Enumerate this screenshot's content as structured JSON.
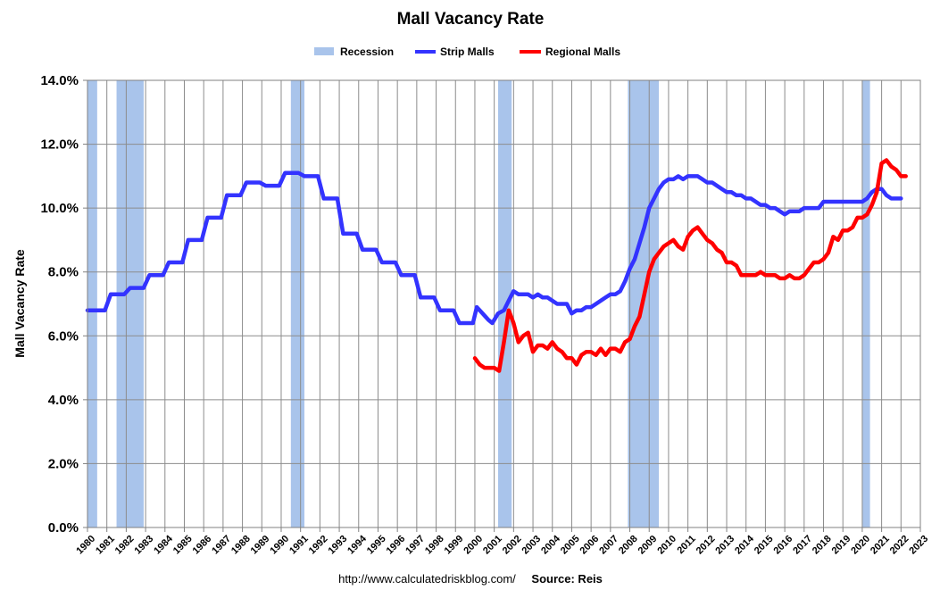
{
  "chart_data": {
    "type": "line",
    "title": "Mall Vacancy Rate",
    "ylabel": "Mall Vacancy Rate",
    "ylim": [
      0,
      14
    ],
    "y_ticks": [
      "0.0%",
      "2.0%",
      "4.0%",
      "6.0%",
      "8.0%",
      "10.0%",
      "12.0%",
      "14.0%"
    ],
    "y_tick_values": [
      0,
      2,
      4,
      6,
      8,
      10,
      12,
      14
    ],
    "xlim": [
      1980,
      2023
    ],
    "x_ticks": [
      "1980",
      "1981",
      "1982",
      "1983",
      "1984",
      "1985",
      "1986",
      "1987",
      "1988",
      "1989",
      "1990",
      "1991",
      "1992",
      "1993",
      "1994",
      "1995",
      "1996",
      "1997",
      "1998",
      "1999",
      "2000",
      "2001",
      "2002",
      "2003",
      "2004",
      "2005",
      "2006",
      "2007",
      "2008",
      "2009",
      "2010",
      "2011",
      "2012",
      "2013",
      "2014",
      "2015",
      "2016",
      "2017",
      "2018",
      "2019",
      "2020",
      "2021",
      "2022",
      "2023"
    ],
    "grid": true,
    "legend_position": "top-center",
    "legend": [
      {
        "name": "Recession",
        "color": "#a9c4eb",
        "kind": "band"
      },
      {
        "name": "Strip Malls",
        "color": "#3333ff",
        "kind": "line"
      },
      {
        "name": "Regional Malls",
        "color": "#ff0000",
        "kind": "line"
      }
    ],
    "recessions": [
      [
        1980.0,
        1980.5
      ],
      [
        1981.5,
        1982.9
      ],
      [
        1990.5,
        1991.2
      ],
      [
        2001.2,
        2001.9
      ],
      [
        2007.9,
        2009.5
      ],
      [
        2020.0,
        2020.4
      ]
    ],
    "series": [
      {
        "name": "Strip Malls",
        "color": "#3333ff",
        "points": [
          [
            1980.0,
            6.8
          ],
          [
            1980.9,
            6.8
          ],
          [
            1981.2,
            7.3
          ],
          [
            1981.9,
            7.3
          ],
          [
            1982.2,
            7.5
          ],
          [
            1982.9,
            7.5
          ],
          [
            1983.2,
            7.9
          ],
          [
            1983.9,
            7.9
          ],
          [
            1984.2,
            8.3
          ],
          [
            1984.9,
            8.3
          ],
          [
            1985.2,
            9.0
          ],
          [
            1985.9,
            9.0
          ],
          [
            1986.2,
            9.7
          ],
          [
            1986.9,
            9.7
          ],
          [
            1987.2,
            10.4
          ],
          [
            1987.9,
            10.4
          ],
          [
            1988.2,
            10.8
          ],
          [
            1988.9,
            10.8
          ],
          [
            1989.2,
            10.7
          ],
          [
            1989.9,
            10.7
          ],
          [
            1990.2,
            11.1
          ],
          [
            1990.9,
            11.1
          ],
          [
            1991.2,
            11.0
          ],
          [
            1991.9,
            11.0
          ],
          [
            1992.2,
            10.3
          ],
          [
            1992.9,
            10.3
          ],
          [
            1993.2,
            9.2
          ],
          [
            1993.9,
            9.2
          ],
          [
            1994.2,
            8.7
          ],
          [
            1994.9,
            8.7
          ],
          [
            1995.2,
            8.3
          ],
          [
            1995.9,
            8.3
          ],
          [
            1996.2,
            7.9
          ],
          [
            1996.9,
            7.9
          ],
          [
            1997.2,
            7.2
          ],
          [
            1997.9,
            7.2
          ],
          [
            1998.2,
            6.8
          ],
          [
            1998.9,
            6.8
          ],
          [
            1999.2,
            6.4
          ],
          [
            1999.9,
            6.4
          ],
          [
            2000.1,
            6.9
          ],
          [
            2000.4,
            6.7
          ],
          [
            2000.7,
            6.5
          ],
          [
            2000.9,
            6.4
          ],
          [
            2001.2,
            6.7
          ],
          [
            2001.5,
            6.8
          ],
          [
            2001.75,
            7.1
          ],
          [
            2002.0,
            7.4
          ],
          [
            2002.25,
            7.3
          ],
          [
            2002.5,
            7.3
          ],
          [
            2002.75,
            7.3
          ],
          [
            2003.0,
            7.2
          ],
          [
            2003.25,
            7.3
          ],
          [
            2003.5,
            7.2
          ],
          [
            2003.75,
            7.2
          ],
          [
            2004.0,
            7.1
          ],
          [
            2004.25,
            7.0
          ],
          [
            2004.5,
            7.0
          ],
          [
            2004.75,
            7.0
          ],
          [
            2005.0,
            6.7
          ],
          [
            2005.25,
            6.8
          ],
          [
            2005.5,
            6.8
          ],
          [
            2005.75,
            6.9
          ],
          [
            2006.0,
            6.9
          ],
          [
            2006.25,
            7.0
          ],
          [
            2006.5,
            7.1
          ],
          [
            2006.75,
            7.2
          ],
          [
            2007.0,
            7.3
          ],
          [
            2007.25,
            7.3
          ],
          [
            2007.5,
            7.4
          ],
          [
            2007.75,
            7.7
          ],
          [
            2008.0,
            8.1
          ],
          [
            2008.25,
            8.4
          ],
          [
            2008.5,
            8.9
          ],
          [
            2008.75,
            9.4
          ],
          [
            2009.0,
            10.0
          ],
          [
            2009.25,
            10.3
          ],
          [
            2009.5,
            10.6
          ],
          [
            2009.75,
            10.8
          ],
          [
            2010.0,
            10.9
          ],
          [
            2010.25,
            10.9
          ],
          [
            2010.5,
            11.0
          ],
          [
            2010.75,
            10.9
          ],
          [
            2011.0,
            11.0
          ],
          [
            2011.25,
            11.0
          ],
          [
            2011.5,
            11.0
          ],
          [
            2011.75,
            10.9
          ],
          [
            2012.0,
            10.8
          ],
          [
            2012.25,
            10.8
          ],
          [
            2012.5,
            10.7
          ],
          [
            2012.75,
            10.6
          ],
          [
            2013.0,
            10.5
          ],
          [
            2013.25,
            10.5
          ],
          [
            2013.5,
            10.4
          ],
          [
            2013.75,
            10.4
          ],
          [
            2014.0,
            10.3
          ],
          [
            2014.25,
            10.3
          ],
          [
            2014.5,
            10.2
          ],
          [
            2014.75,
            10.1
          ],
          [
            2015.0,
            10.1
          ],
          [
            2015.25,
            10.0
          ],
          [
            2015.5,
            10.0
          ],
          [
            2015.75,
            9.9
          ],
          [
            2016.0,
            9.8
          ],
          [
            2016.25,
            9.9
          ],
          [
            2016.5,
            9.9
          ],
          [
            2016.75,
            9.9
          ],
          [
            2017.0,
            10.0
          ],
          [
            2017.25,
            10.0
          ],
          [
            2017.5,
            10.0
          ],
          [
            2017.75,
            10.0
          ],
          [
            2018.0,
            10.2
          ],
          [
            2018.25,
            10.2
          ],
          [
            2018.5,
            10.2
          ],
          [
            2018.75,
            10.2
          ],
          [
            2019.0,
            10.2
          ],
          [
            2019.25,
            10.2
          ],
          [
            2019.5,
            10.2
          ],
          [
            2019.75,
            10.2
          ],
          [
            2020.0,
            10.2
          ],
          [
            2020.25,
            10.3
          ],
          [
            2020.5,
            10.5
          ],
          [
            2020.75,
            10.6
          ],
          [
            2021.0,
            10.6
          ],
          [
            2021.25,
            10.4
          ],
          [
            2021.5,
            10.3
          ],
          [
            2021.75,
            10.3
          ],
          [
            2022.0,
            10.3
          ]
        ]
      },
      {
        "name": "Regional Malls",
        "color": "#ff0000",
        "points": [
          [
            2000.0,
            5.3
          ],
          [
            2000.25,
            5.1
          ],
          [
            2000.5,
            5.0
          ],
          [
            2000.75,
            5.0
          ],
          [
            2001.0,
            5.0
          ],
          [
            2001.25,
            4.9
          ],
          [
            2001.5,
            5.8
          ],
          [
            2001.75,
            6.8
          ],
          [
            2002.0,
            6.4
          ],
          [
            2002.25,
            5.8
          ],
          [
            2002.5,
            6.0
          ],
          [
            2002.75,
            6.1
          ],
          [
            2003.0,
            5.5
          ],
          [
            2003.25,
            5.7
          ],
          [
            2003.5,
            5.7
          ],
          [
            2003.75,
            5.6
          ],
          [
            2004.0,
            5.8
          ],
          [
            2004.25,
            5.6
          ],
          [
            2004.5,
            5.5
          ],
          [
            2004.75,
            5.3
          ],
          [
            2005.0,
            5.3
          ],
          [
            2005.25,
            5.1
          ],
          [
            2005.5,
            5.4
          ],
          [
            2005.75,
            5.5
          ],
          [
            2006.0,
            5.5
          ],
          [
            2006.25,
            5.4
          ],
          [
            2006.5,
            5.6
          ],
          [
            2006.75,
            5.4
          ],
          [
            2007.0,
            5.6
          ],
          [
            2007.25,
            5.6
          ],
          [
            2007.5,
            5.5
          ],
          [
            2007.75,
            5.8
          ],
          [
            2008.0,
            5.9
          ],
          [
            2008.25,
            6.3
          ],
          [
            2008.5,
            6.6
          ],
          [
            2008.75,
            7.3
          ],
          [
            2009.0,
            8.0
          ],
          [
            2009.25,
            8.4
          ],
          [
            2009.5,
            8.6
          ],
          [
            2009.75,
            8.8
          ],
          [
            2010.0,
            8.9
          ],
          [
            2010.25,
            9.0
          ],
          [
            2010.5,
            8.8
          ],
          [
            2010.75,
            8.7
          ],
          [
            2011.0,
            9.1
          ],
          [
            2011.25,
            9.3
          ],
          [
            2011.5,
            9.4
          ],
          [
            2011.75,
            9.2
          ],
          [
            2012.0,
            9.0
          ],
          [
            2012.25,
            8.9
          ],
          [
            2012.5,
            8.7
          ],
          [
            2012.75,
            8.6
          ],
          [
            2013.0,
            8.3
          ],
          [
            2013.25,
            8.3
          ],
          [
            2013.5,
            8.2
          ],
          [
            2013.75,
            7.9
          ],
          [
            2014.0,
            7.9
          ],
          [
            2014.25,
            7.9
          ],
          [
            2014.5,
            7.9
          ],
          [
            2014.75,
            8.0
          ],
          [
            2015.0,
            7.9
          ],
          [
            2015.25,
            7.9
          ],
          [
            2015.5,
            7.9
          ],
          [
            2015.75,
            7.8
          ],
          [
            2016.0,
            7.8
          ],
          [
            2016.25,
            7.9
          ],
          [
            2016.5,
            7.8
          ],
          [
            2016.75,
            7.8
          ],
          [
            2017.0,
            7.9
          ],
          [
            2017.25,
            8.1
          ],
          [
            2017.5,
            8.3
          ],
          [
            2017.75,
            8.3
          ],
          [
            2018.0,
            8.4
          ],
          [
            2018.25,
            8.6
          ],
          [
            2018.5,
            9.1
          ],
          [
            2018.75,
            9.0
          ],
          [
            2019.0,
            9.3
          ],
          [
            2019.25,
            9.3
          ],
          [
            2019.5,
            9.4
          ],
          [
            2019.75,
            9.7
          ],
          [
            2020.0,
            9.7
          ],
          [
            2020.25,
            9.8
          ],
          [
            2020.5,
            10.1
          ],
          [
            2020.75,
            10.5
          ],
          [
            2021.0,
            11.4
          ],
          [
            2021.25,
            11.5
          ],
          [
            2021.5,
            11.3
          ],
          [
            2021.75,
            11.2
          ],
          [
            2022.0,
            11.0
          ],
          [
            2022.25,
            11.0
          ]
        ]
      }
    ]
  },
  "footer": {
    "url": "http://www.calculatedriskblog.com/",
    "source": "Source: Reis"
  }
}
